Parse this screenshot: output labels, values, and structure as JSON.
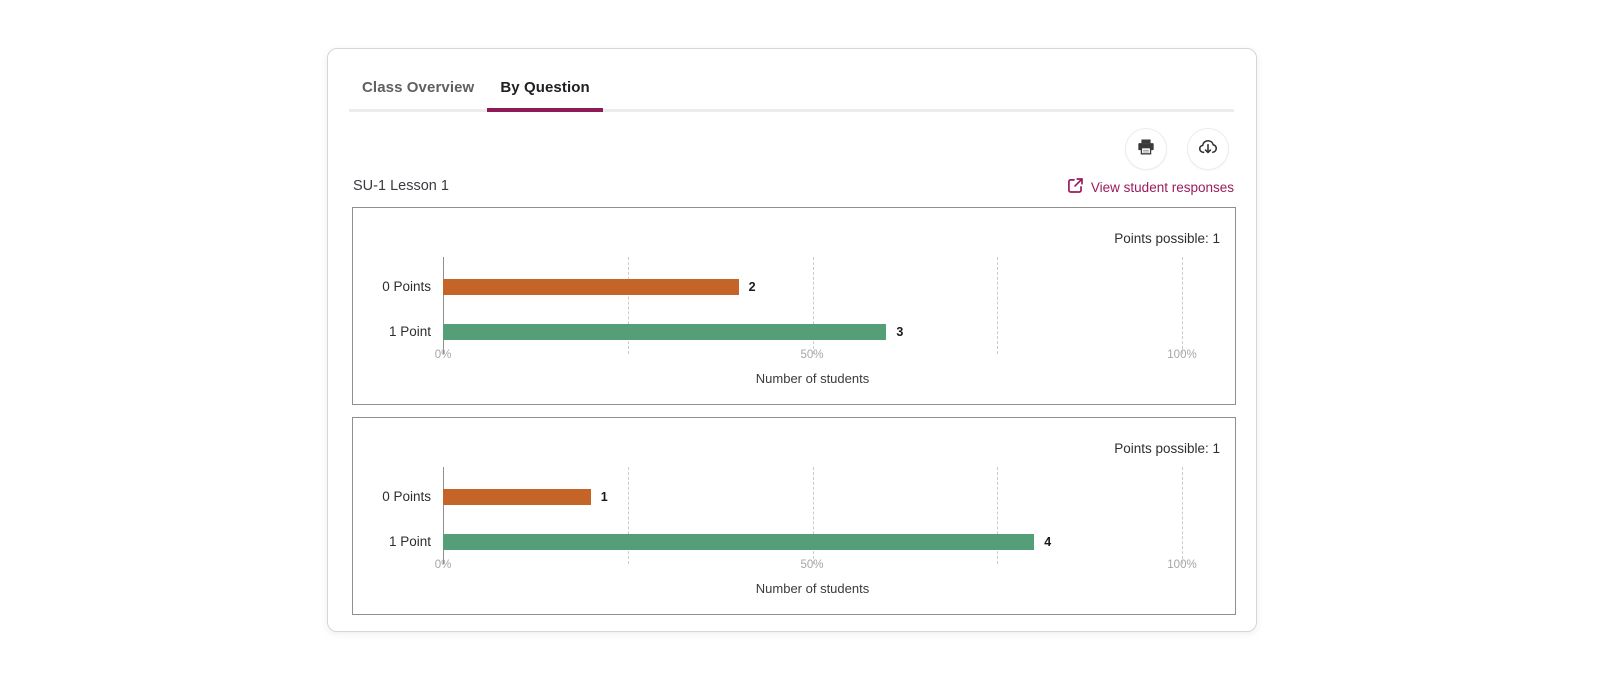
{
  "tabs": {
    "items": [
      {
        "label": "Class Overview"
      },
      {
        "label": "By Question"
      }
    ],
    "active_index": 1
  },
  "toolbar": {
    "print_icon": "printer-icon",
    "download_icon": "cloud-download-icon"
  },
  "header": {
    "title": "SU-1 Lesson 1",
    "view_responses_label": "View student responses",
    "view_responses_icon": "external-link-icon"
  },
  "colors": {
    "accent": "#8E1B58",
    "link": "#9B1B5E",
    "orange": "#C46427",
    "green": "#549E78",
    "grid": "#CBCBCB",
    "axis": "#8F8F8F"
  },
  "chart_data": [
    {
      "type": "bar",
      "orientation": "horizontal",
      "points_possible_label": "Points possible: 1",
      "categories": [
        "0 Points",
        "1 Point"
      ],
      "values": [
        2,
        3
      ],
      "percents": [
        40,
        60
      ],
      "bar_colors": [
        "orange",
        "green"
      ],
      "x_ticks": [
        {
          "label": "0%",
          "percent": 0
        },
        {
          "label": "50%",
          "percent": 50
        },
        {
          "label": "100%",
          "percent": 100
        }
      ],
      "gridlines_percent": [
        0,
        25,
        50,
        75,
        100
      ],
      "xlabel": "Number of students",
      "xlim": [
        0,
        100
      ],
      "legend": "none"
    },
    {
      "type": "bar",
      "orientation": "horizontal",
      "points_possible_label": "Points possible: 1",
      "categories": [
        "0 Points",
        "1 Point"
      ],
      "values": [
        1,
        4
      ],
      "percents": [
        20,
        80
      ],
      "bar_colors": [
        "orange",
        "green"
      ],
      "x_ticks": [
        {
          "label": "0%",
          "percent": 0
        },
        {
          "label": "50%",
          "percent": 50
        },
        {
          "label": "100%",
          "percent": 100
        }
      ],
      "gridlines_percent": [
        0,
        25,
        50,
        75,
        100
      ],
      "xlabel": "Number of students",
      "xlim": [
        0,
        100
      ],
      "legend": "none"
    }
  ]
}
